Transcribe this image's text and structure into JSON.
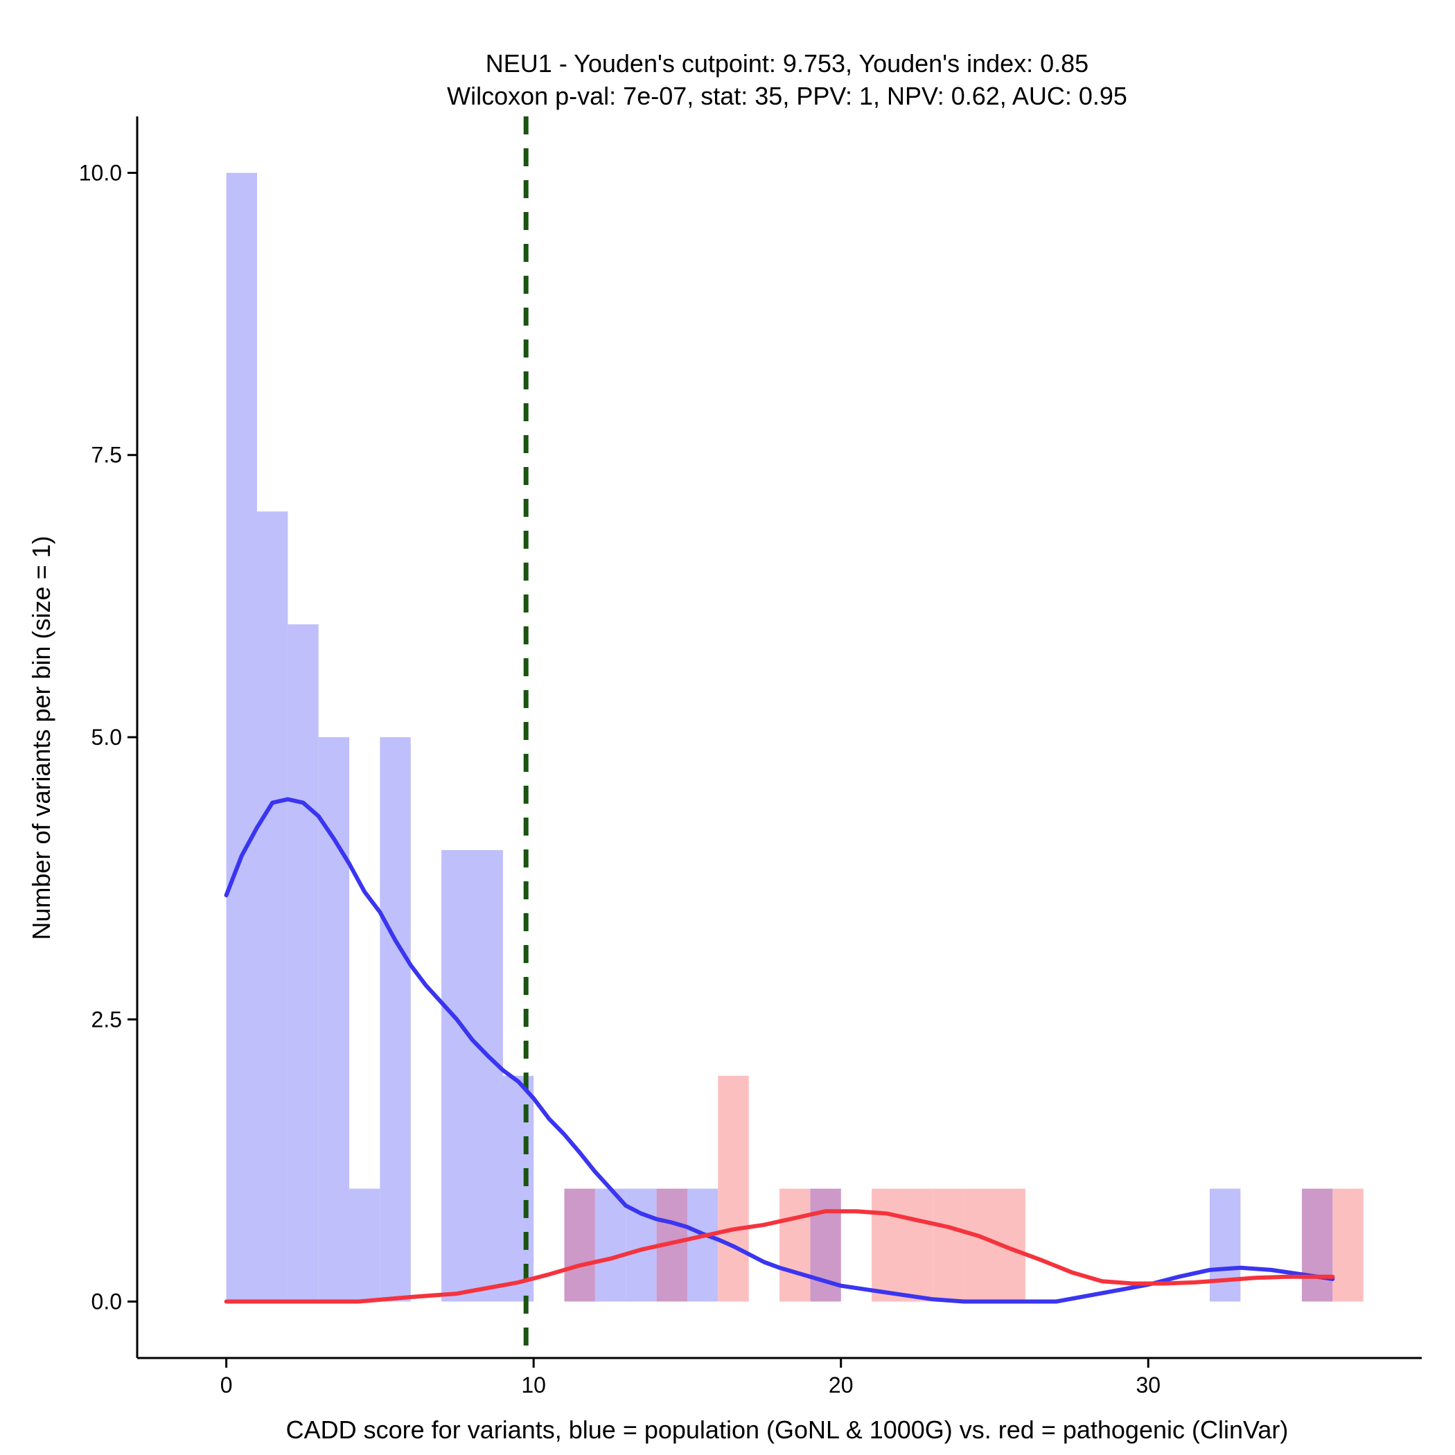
{
  "chart_data": {
    "type": "histogram",
    "title": "NEU1 - Youden's cutpoint: 9.753, Youden's index: 0.85",
    "subtitle": "Wilcoxon p-val: 7e-07, stat: 35, PPV: 1, NPV: 0.62, AUC: 0.95",
    "xlabel": "CADD score for variants, blue = population (GoNL & 1000G) vs. red = pathogenic (ClinVar)",
    "ylabel": "Number of variants per bin (size = 1)",
    "xlim": [
      -2.9,
      38.9
    ],
    "ylim": [
      -0.5,
      10.5
    ],
    "x_ticks": [
      0,
      10,
      20,
      30
    ],
    "x_tick_labels": [
      "0",
      "10",
      "20",
      "30"
    ],
    "y_ticks": [
      0,
      2.5,
      5,
      7.5,
      10
    ],
    "y_tick_labels": [
      "0.0",
      "2.5",
      "5.0",
      "7.5",
      "10.0"
    ],
    "cutpoint": 9.753,
    "bin_width": 1,
    "colors": {
      "population_fill": "#bfbffb",
      "pathogenic_fill": "#fcbfc0",
      "overlap_fill": "#cc99c8",
      "population_line": "#3a35f0",
      "pathogenic_line": "#f5333d",
      "cutpoint_line": "#1a5410"
    },
    "series": [
      {
        "name": "population (GoNL & 1000G)",
        "bins": [
          {
            "start": 0,
            "count": 10
          },
          {
            "start": 1,
            "count": 7
          },
          {
            "start": 2,
            "count": 6
          },
          {
            "start": 3,
            "count": 5
          },
          {
            "start": 4,
            "count": 1
          },
          {
            "start": 5,
            "count": 5
          },
          {
            "start": 7,
            "count": 4
          },
          {
            "start": 8,
            "count": 4
          },
          {
            "start": 9,
            "count": 2
          },
          {
            "start": 11,
            "count": 1
          },
          {
            "start": 12,
            "count": 1
          },
          {
            "start": 13,
            "count": 1
          },
          {
            "start": 14,
            "count": 1
          },
          {
            "start": 15,
            "count": 1
          },
          {
            "start": 19,
            "count": 1
          },
          {
            "start": 32,
            "count": 1
          },
          {
            "start": 35,
            "count": 1
          }
        ],
        "density_curve": {
          "x": [
            0,
            0.5,
            1,
            1.5,
            2,
            2.5,
            3,
            3.5,
            4,
            4.5,
            5,
            5.5,
            6,
            6.5,
            7,
            7.5,
            8,
            8.5,
            9,
            9.5,
            10,
            10.5,
            11,
            11.5,
            12,
            12.5,
            13,
            13.5,
            14,
            14.5,
            15,
            15.5,
            16,
            16.5,
            17,
            17.5,
            18,
            19,
            20,
            21,
            22,
            23,
            24,
            25,
            26,
            27,
            28,
            29,
            30,
            31,
            32,
            33,
            34,
            35,
            36
          ],
          "y": [
            3.6,
            3.95,
            4.2,
            4.42,
            4.45,
            4.42,
            4.3,
            4.1,
            3.88,
            3.63,
            3.45,
            3.2,
            2.98,
            2.8,
            2.65,
            2.5,
            2.32,
            2.18,
            2.05,
            1.95,
            1.8,
            1.62,
            1.48,
            1.32,
            1.15,
            1.0,
            0.85,
            0.78,
            0.73,
            0.7,
            0.66,
            0.6,
            0.55,
            0.49,
            0.42,
            0.35,
            0.3,
            0.22,
            0.14,
            0.1,
            0.06,
            0.02,
            0.0,
            0.0,
            0.0,
            0.0,
            0.05,
            0.1,
            0.15,
            0.22,
            0.28,
            0.3,
            0.28,
            0.24,
            0.2
          ]
        }
      },
      {
        "name": "pathogenic (ClinVar)",
        "bins": [
          {
            "start": 11,
            "count": 1
          },
          {
            "start": 14,
            "count": 1
          },
          {
            "start": 16,
            "count": 2
          },
          {
            "start": 18,
            "count": 1
          },
          {
            "start": 19,
            "count": 1
          },
          {
            "start": 21,
            "count": 1
          },
          {
            "start": 22,
            "count": 1
          },
          {
            "start": 23,
            "count": 1
          },
          {
            "start": 24,
            "count": 1
          },
          {
            "start": 25,
            "count": 1
          },
          {
            "start": 35,
            "count": 1
          },
          {
            "start": 36,
            "count": 1
          }
        ],
        "density_curve": {
          "x": [
            0,
            2,
            4.3,
            6,
            7.5,
            8.5,
            9.5,
            10.5,
            11.5,
            12.5,
            13.5,
            14.5,
            15.5,
            16.5,
            17.5,
            18.5,
            19.5,
            20.5,
            21.5,
            22.5,
            23.5,
            24.5,
            25.5,
            26.5,
            27.5,
            28.5,
            29.5,
            30.5,
            31.5,
            32.5,
            33.5,
            34.5,
            35.5,
            36
          ],
          "y": [
            0.0,
            0.0,
            0.0,
            0.04,
            0.07,
            0.12,
            0.17,
            0.24,
            0.32,
            0.38,
            0.46,
            0.52,
            0.58,
            0.64,
            0.68,
            0.74,
            0.8,
            0.8,
            0.78,
            0.72,
            0.66,
            0.58,
            0.47,
            0.37,
            0.26,
            0.18,
            0.16,
            0.16,
            0.17,
            0.19,
            0.21,
            0.22,
            0.22,
            0.22
          ]
        }
      }
    ]
  }
}
